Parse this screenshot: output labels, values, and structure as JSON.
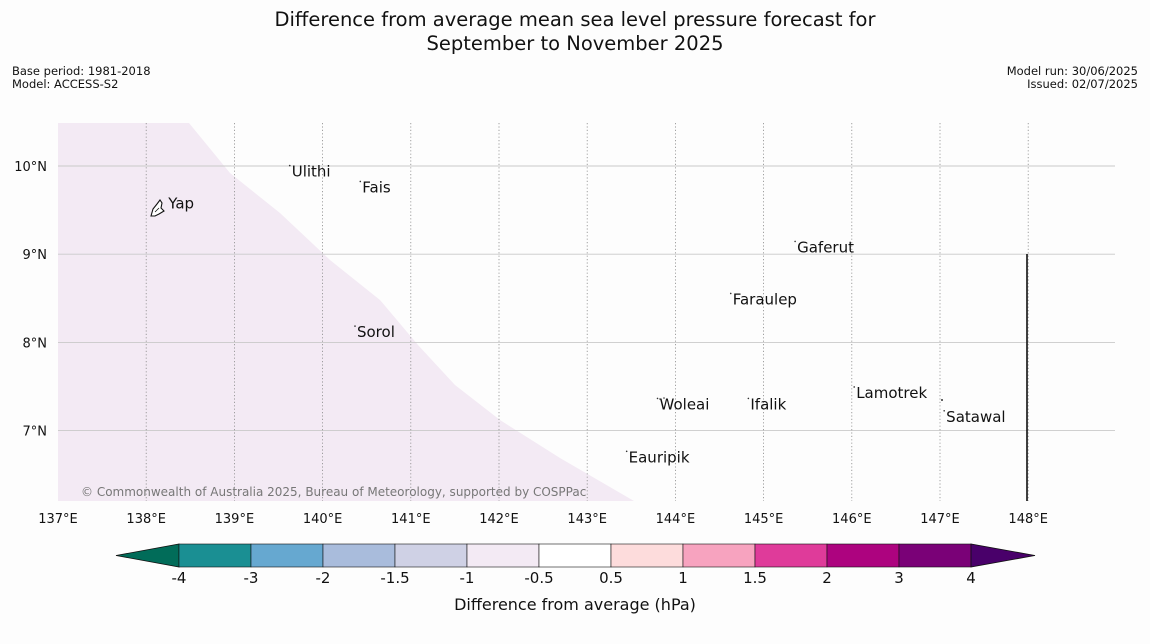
{
  "title_line1": "Difference from average mean sea level pressure forecast for",
  "title_line2": "September to November 2025",
  "meta_left": {
    "base_period": "Base period: 1981-2018",
    "model": "Model: ACCESS-S2"
  },
  "meta_right": {
    "model_run": "Model run: 30/06/2025",
    "issued": "Issued: 02/07/2025"
  },
  "map": {
    "lon_ticks": [
      "137°E",
      "138°E",
      "139°E",
      "140°E",
      "141°E",
      "142°E",
      "143°E",
      "144°E",
      "145°E",
      "146°E",
      "147°E",
      "148°E"
    ],
    "lat_ticks": [
      "10°N",
      "9°N",
      "8°N",
      "7°N"
    ],
    "places": [
      {
        "name": "Yap",
        "lon": 138.25,
        "lat": 9.52
      },
      {
        "name": "Ulithi",
        "lon": 139.65,
        "lat": 9.88
      },
      {
        "name": "Fais",
        "lon": 140.45,
        "lat": 9.7
      },
      {
        "name": "Gaferut",
        "lon": 145.38,
        "lat": 9.02
      },
      {
        "name": "Faraulep",
        "lon": 144.65,
        "lat": 8.43
      },
      {
        "name": "Sorol",
        "lon": 140.39,
        "lat": 8.06
      },
      {
        "name": "Lamotrek",
        "lon": 146.05,
        "lat": 7.37
      },
      {
        "name": "Woleai",
        "lon": 143.82,
        "lat": 7.24
      },
      {
        "name": "Ifalik",
        "lon": 144.85,
        "lat": 7.24
      },
      {
        "name": "Satawal",
        "lon": 147.07,
        "lat": 7.1
      },
      {
        "name": "Eauripik",
        "lon": 143.47,
        "lat": 6.64
      }
    ],
    "shaded_region_fill": "#f3eaf4",
    "copyright": "© Commonwealth of Australia 2025, Bureau of Meteorology, supported by COSPPac"
  },
  "colorbar": {
    "label": "Difference from average (hPa)",
    "ticks": [
      "-4",
      "-3",
      "-2",
      "-1.5",
      "-1",
      "-0.5",
      "0.5",
      "1",
      "1.5",
      "2",
      "3",
      "4"
    ],
    "colors": [
      "#1a8f93",
      "#66a8d0",
      "#a9bcdc",
      "#cfd1e5",
      "#f3eaf4",
      "#ffffff",
      "#fddcdc",
      "#f7a3bf",
      "#df3b9a",
      "#ad037f",
      "#7a0177"
    ],
    "under_color": "#016c59",
    "over_color": "#49006a"
  }
}
